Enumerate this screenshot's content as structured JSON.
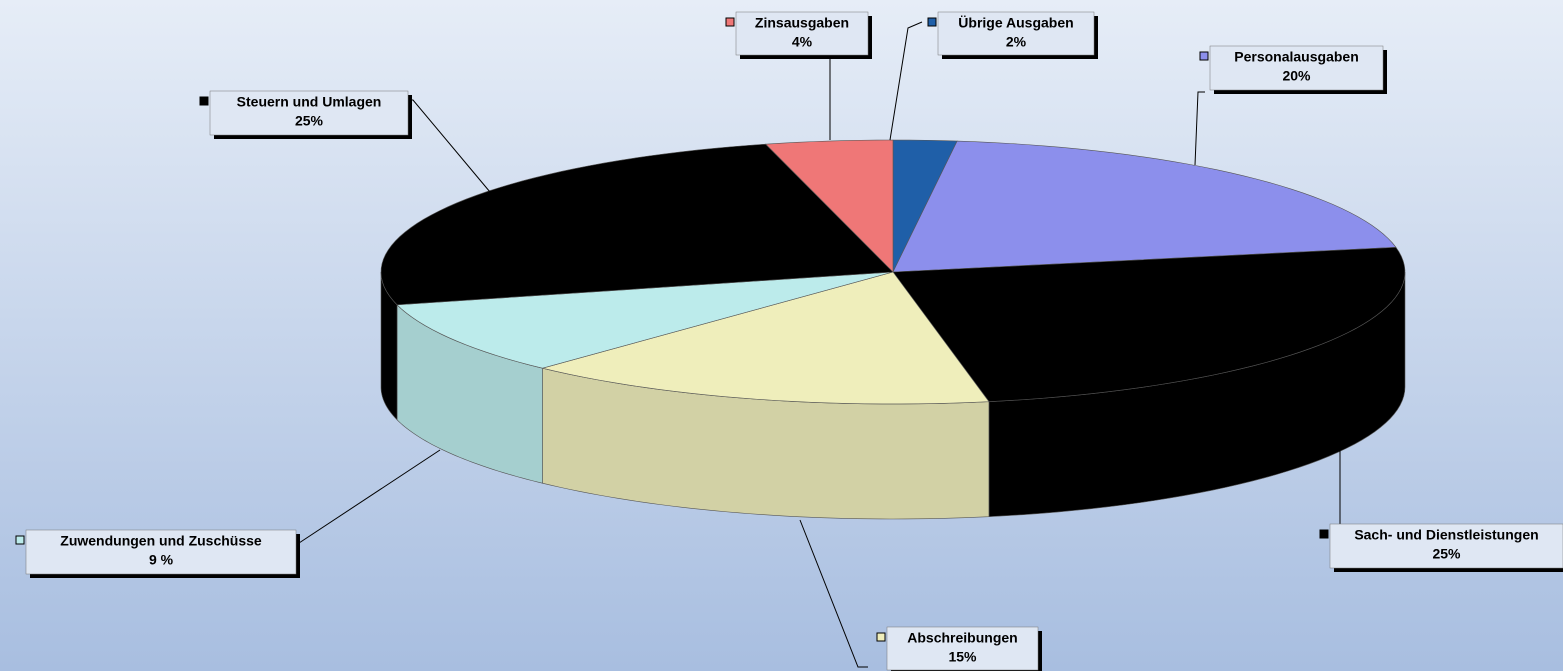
{
  "chart_data": {
    "type": "pie",
    "categories": [
      "Übrige Ausgaben",
      "Personalausgaben",
      "Sach- und Dienstleistungen",
      "Abschreibungen",
      "Zuwendungen und Zuschüsse",
      "Steuern und Umlagen",
      "Zinsausgaben"
    ],
    "values": [
      2,
      20,
      25,
      15,
      9,
      25,
      4
    ],
    "value_labels": [
      "2%",
      "20%",
      "25%",
      "15%",
      "9 %",
      "25%",
      "4%"
    ],
    "colors": [
      "#1f5fa8",
      "#8c8fec",
      "#000000",
      "#efeebb",
      "#bcebeb",
      "#000000",
      "#ef7777"
    ]
  }
}
